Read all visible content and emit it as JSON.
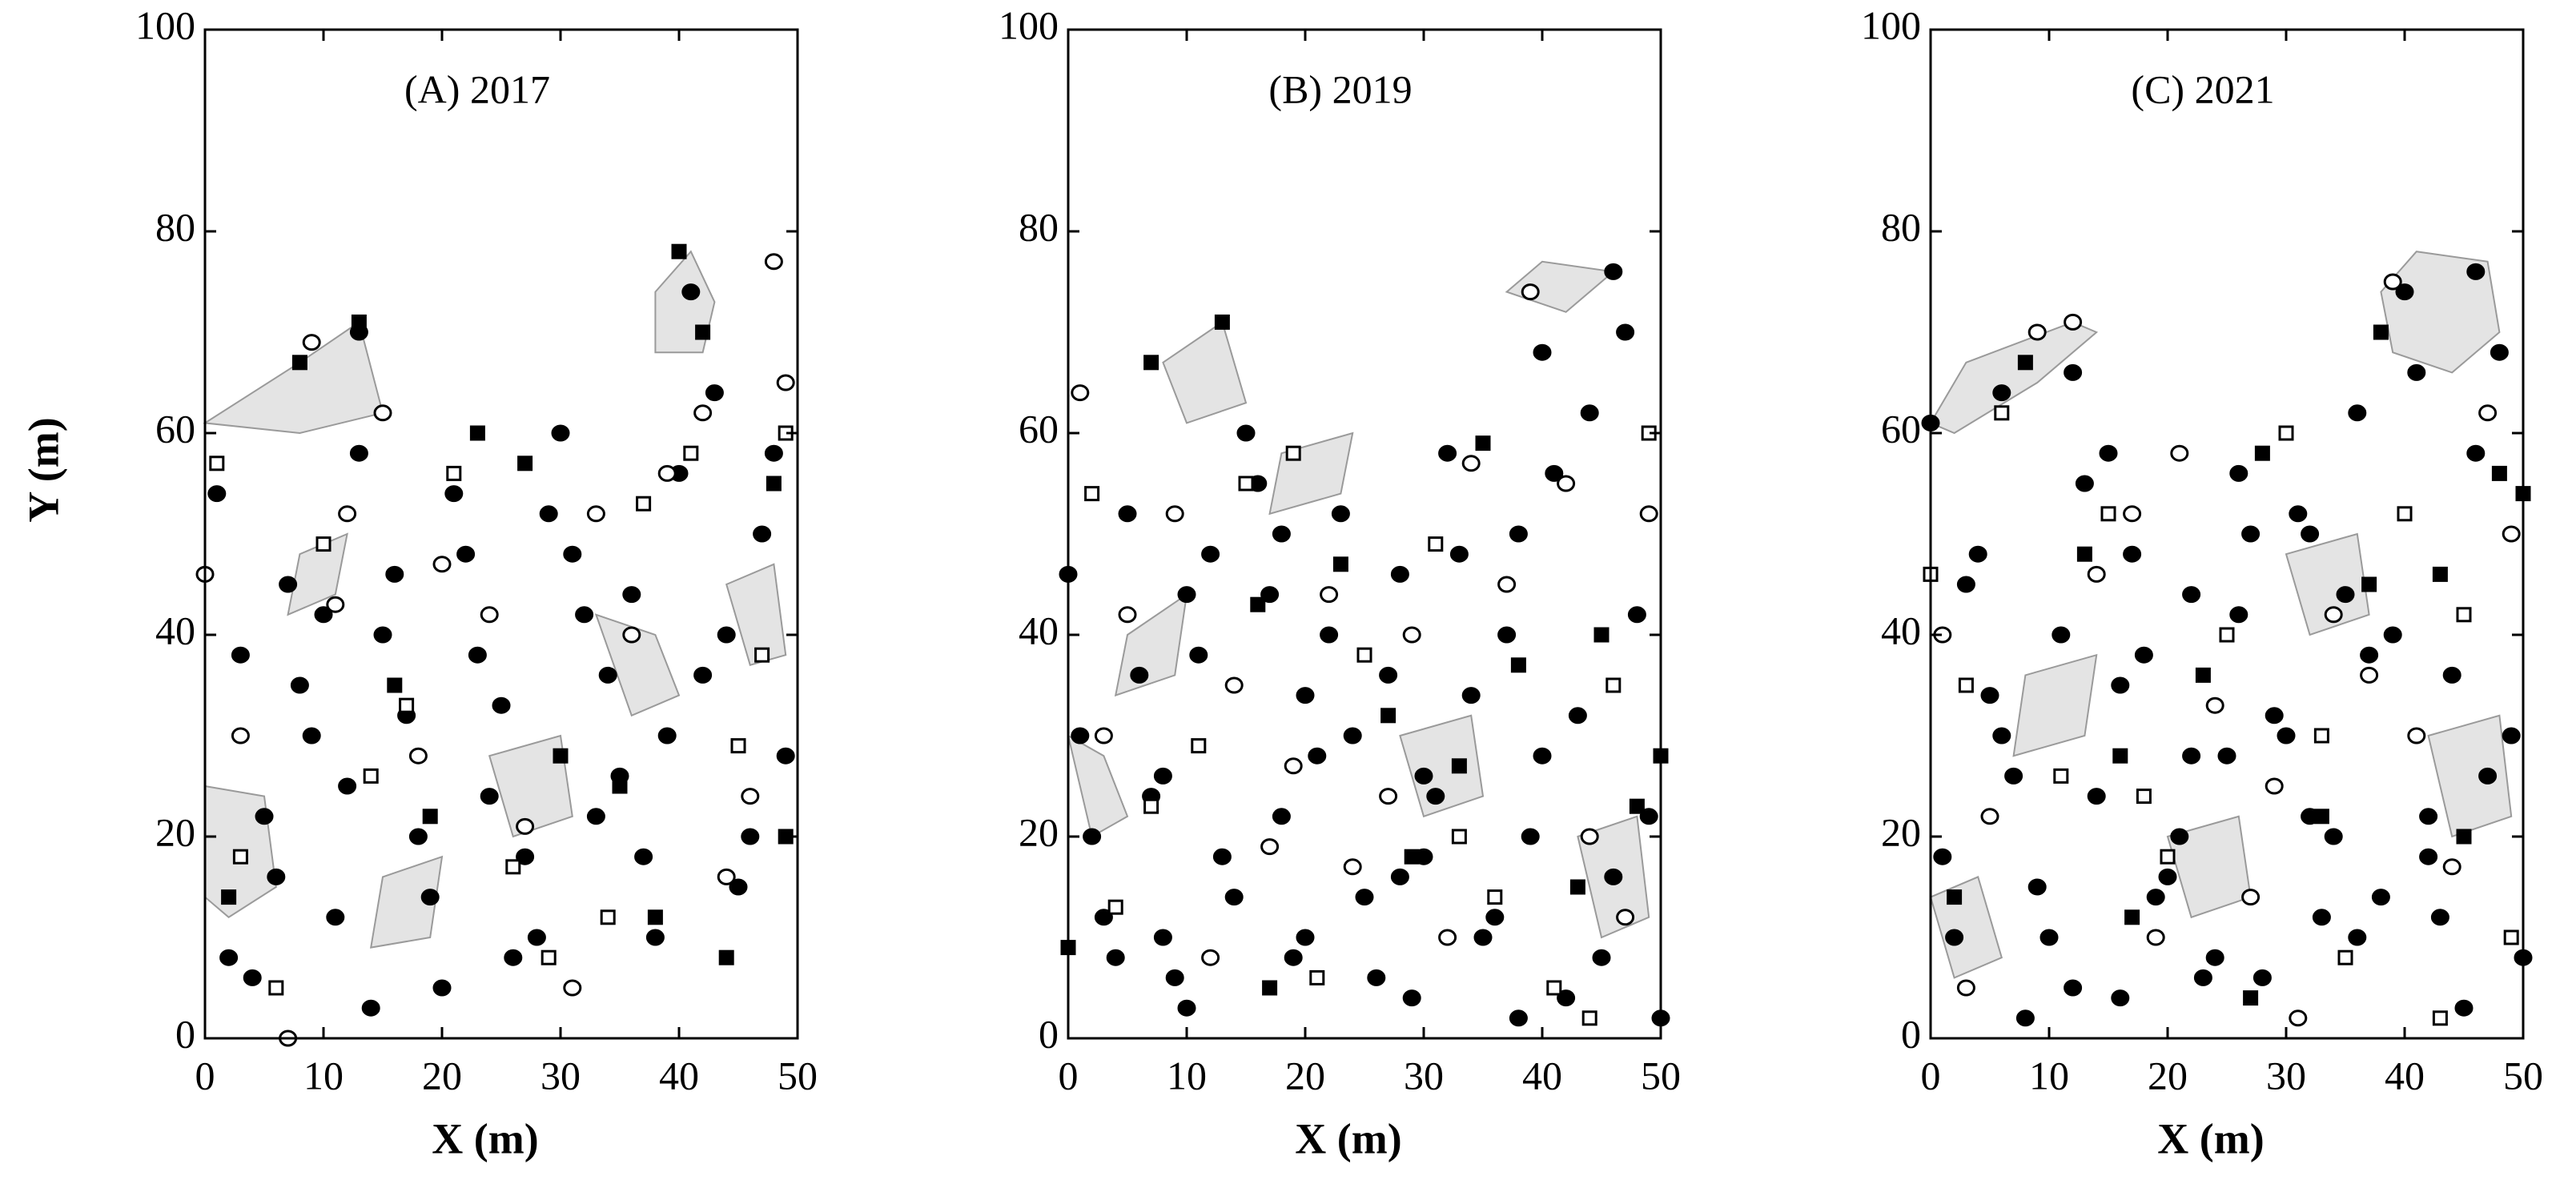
{
  "chart_data": [
    {
      "type": "scatter",
      "title": "(A) 2017",
      "xlabel": "X (m)",
      "ylabel": "Y (m)",
      "xlim": [
        0,
        50
      ],
      "ylim": [
        0,
        100
      ],
      "xticks": [
        0,
        10,
        20,
        30,
        40,
        50
      ],
      "yticks": [
        0,
        20,
        40,
        60,
        80,
        100
      ],
      "polygon_color": "#e4e4e4",
      "polygons": [
        {
          "x": [
            0,
            8,
            13,
            15,
            8
          ],
          "y": [
            61,
            67,
            71,
            62,
            60
          ]
        },
        {
          "x": [
            38,
            41,
            43,
            42,
            38
          ],
          "y": [
            74,
            78,
            73,
            68,
            68
          ]
        },
        {
          "x": [
            0,
            5,
            6,
            2,
            0
          ],
          "y": [
            25,
            24,
            15,
            12,
            14
          ]
        },
        {
          "x": [
            33,
            38,
            40,
            36
          ],
          "y": [
            42,
            40,
            34,
            32
          ]
        },
        {
          "x": [
            24,
            30,
            31,
            26
          ],
          "y": [
            28,
            30,
            22,
            20
          ]
        },
        {
          "x": [
            44,
            48,
            49,
            46
          ],
          "y": [
            45,
            47,
            38,
            37
          ]
        },
        {
          "x": [
            15,
            20,
            19,
            14
          ],
          "y": [
            16,
            18,
            10,
            9
          ]
        },
        {
          "x": [
            8,
            12,
            11,
            7
          ],
          "y": [
            48,
            50,
            44,
            42
          ]
        }
      ],
      "series": [
        {
          "marker": "circle",
          "filled": true,
          "color": "#000000",
          "x": [
            1,
            3,
            5,
            2,
            7,
            9,
            11,
            13,
            15,
            18,
            20,
            22,
            25,
            27,
            30,
            32,
            35,
            38,
            40,
            42,
            45,
            47,
            49,
            4,
            8,
            12,
            16,
            19,
            23,
            26,
            29,
            33,
            36,
            39,
            43,
            46,
            48,
            6,
            10,
            14,
            17,
            21,
            24,
            28,
            31,
            34,
            37,
            41,
            44,
            13
          ],
          "y": [
            54,
            38,
            22,
            8,
            45,
            30,
            12,
            58,
            40,
            20,
            5,
            48,
            33,
            18,
            60,
            42,
            26,
            10,
            56,
            36,
            15,
            50,
            28,
            6,
            35,
            25,
            46,
            14,
            38,
            8,
            52,
            22,
            44,
            30,
            64,
            20,
            58,
            16,
            42,
            3,
            32,
            54,
            24,
            10,
            48,
            36,
            18,
            74,
            40,
            70
          ]
        },
        {
          "marker": "circle",
          "filled": false,
          "color": "#000000",
          "x": [
            0,
            9,
            12,
            3,
            20,
            27,
            36,
            42,
            48,
            7,
            15,
            24,
            31,
            39,
            46,
            11,
            18,
            33,
            44,
            49
          ],
          "y": [
            46,
            69,
            52,
            30,
            47,
            21,
            40,
            62,
            77,
            0,
            62,
            42,
            5,
            56,
            24,
            43,
            28,
            52,
            16,
            65
          ]
        },
        {
          "marker": "square",
          "filled": false,
          "color": "#000000",
          "x": [
            1,
            6,
            14,
            21,
            26,
            34,
            41,
            47,
            3,
            10,
            17,
            29,
            37,
            45,
            49
          ],
          "y": [
            57,
            5,
            26,
            56,
            17,
            12,
            58,
            38,
            18,
            49,
            33,
            8,
            53,
            29,
            60
          ]
        },
        {
          "marker": "square",
          "filled": true,
          "color": "#000000",
          "x": [
            8,
            13,
            19,
            23,
            30,
            35,
            40,
            44,
            48,
            2,
            16,
            27,
            38,
            42,
            49
          ],
          "y": [
            67,
            71,
            22,
            60,
            28,
            25,
            78,
            8,
            55,
            14,
            35,
            57,
            12,
            70,
            20
          ]
        }
      ]
    },
    {
      "type": "scatter",
      "title": "(B) 2019",
      "xlabel": "X (m)",
      "xlim": [
        0,
        50
      ],
      "ylim": [
        0,
        100
      ],
      "xticks": [
        0,
        10,
        20,
        30,
        40,
        50
      ],
      "yticks": [
        0,
        20,
        40,
        60,
        80,
        100
      ],
      "polygon_color": "#e4e4e4",
      "polygons": [
        {
          "x": [
            8,
            13,
            15,
            10
          ],
          "y": [
            67,
            71,
            63,
            61
          ]
        },
        {
          "x": [
            37,
            40,
            46,
            42
          ],
          "y": [
            74,
            77,
            76,
            72
          ]
        },
        {
          "x": [
            0,
            3,
            5,
            2
          ],
          "y": [
            30,
            28,
            22,
            20
          ]
        },
        {
          "x": [
            28,
            34,
            35,
            30
          ],
          "y": [
            30,
            32,
            24,
            22
          ]
        },
        {
          "x": [
            18,
            24,
            23,
            17
          ],
          "y": [
            58,
            60,
            54,
            52
          ]
        },
        {
          "x": [
            43,
            48,
            49,
            45
          ],
          "y": [
            20,
            22,
            12,
            10
          ]
        },
        {
          "x": [
            5,
            10,
            9,
            4
          ],
          "y": [
            40,
            44,
            36,
            34
          ]
        }
      ],
      "series": [
        {
          "marker": "circle",
          "filled": true,
          "color": "#000000",
          "x": [
            0,
            2,
            4,
            6,
            8,
            10,
            12,
            14,
            16,
            18,
            20,
            22,
            24,
            26,
            28,
            30,
            32,
            34,
            36,
            38,
            40,
            42,
            44,
            46,
            48,
            50,
            1,
            3,
            5,
            7,
            9,
            11,
            13,
            15,
            17,
            19,
            21,
            23,
            25,
            27,
            29,
            31,
            33,
            35,
            37,
            39,
            41,
            43,
            45,
            47,
            49,
            10,
            20,
            30,
            40,
            8,
            18,
            28,
            38,
            46
          ],
          "y": [
            46,
            20,
            8,
            36,
            26,
            3,
            48,
            14,
            55,
            22,
            10,
            40,
            30,
            6,
            46,
            18,
            58,
            34,
            12,
            50,
            28,
            4,
            62,
            16,
            42,
            2,
            30,
            12,
            52,
            24,
            6,
            38,
            18,
            60,
            44,
            8,
            28,
            52,
            14,
            36,
            4,
            24,
            48,
            10,
            40,
            20,
            56,
            32,
            8,
            70,
            22,
            44,
            34,
            26,
            68,
            10,
            50,
            16,
            2,
            76
          ]
        },
        {
          "marker": "circle",
          "filled": false,
          "color": "#000000",
          "x": [
            1,
            5,
            9,
            14,
            19,
            24,
            29,
            34,
            39,
            44,
            49,
            3,
            12,
            22,
            32,
            42,
            47,
            17,
            27,
            37
          ],
          "y": [
            64,
            42,
            52,
            35,
            27,
            17,
            40,
            57,
            74,
            20,
            52,
            30,
            8,
            44,
            10,
            55,
            12,
            19,
            24,
            45
          ]
        },
        {
          "marker": "square",
          "filled": false,
          "color": "#000000",
          "x": [
            2,
            7,
            11,
            15,
            21,
            25,
            31,
            36,
            41,
            46,
            49,
            4,
            19,
            33,
            44
          ],
          "y": [
            54,
            23,
            29,
            55,
            6,
            38,
            49,
            14,
            5,
            35,
            60,
            13,
            58,
            20,
            2
          ]
        },
        {
          "marker": "square",
          "filled": true,
          "color": "#000000",
          "x": [
            7,
            13,
            17,
            23,
            27,
            33,
            38,
            43,
            48,
            0,
            16,
            29,
            35,
            45,
            50
          ],
          "y": [
            67,
            71,
            5,
            47,
            32,
            27,
            37,
            15,
            23,
            9,
            43,
            18,
            59,
            40,
            28
          ]
        }
      ]
    },
    {
      "type": "scatter",
      "title": "(C) 2021",
      "xlabel": "X (m)",
      "xlim": [
        0,
        50
      ],
      "ylim": [
        0,
        100
      ],
      "xticks": [
        0,
        10,
        20,
        30,
        40,
        50
      ],
      "yticks": [
        0,
        20,
        40,
        60,
        80,
        100
      ],
      "polygon_color": "#e4e4e4",
      "polygons": [
        {
          "x": [
            0,
            3,
            12,
            14,
            9,
            2
          ],
          "y": [
            61,
            67,
            71,
            70,
            65,
            60
          ]
        },
        {
          "x": [
            38,
            41,
            47,
            48,
            44,
            39
          ],
          "y": [
            74,
            78,
            77,
            70,
            66,
            68
          ]
        },
        {
          "x": [
            0,
            4,
            6,
            2
          ],
          "y": [
            14,
            16,
            8,
            6
          ]
        },
        {
          "x": [
            20,
            26,
            27,
            22
          ],
          "y": [
            20,
            22,
            14,
            12
          ]
        },
        {
          "x": [
            30,
            36,
            37,
            32
          ],
          "y": [
            48,
            50,
            42,
            40
          ]
        },
        {
          "x": [
            42,
            48,
            49,
            44
          ],
          "y": [
            30,
            32,
            22,
            20
          ]
        },
        {
          "x": [
            8,
            14,
            13,
            7
          ],
          "y": [
            36,
            38,
            30,
            28
          ]
        }
      ],
      "series": [
        {
          "marker": "circle",
          "filled": true,
          "color": "#000000",
          "x": [
            0,
            3,
            6,
            9,
            12,
            15,
            18,
            21,
            24,
            27,
            30,
            33,
            36,
            39,
            42,
            45,
            48,
            1,
            4,
            7,
            10,
            13,
            16,
            19,
            22,
            25,
            28,
            31,
            34,
            37,
            40,
            43,
            46,
            49,
            2,
            5,
            8,
            11,
            14,
            17,
            20,
            23,
            26,
            29,
            32,
            35,
            38,
            41,
            44,
            47,
            50,
            12,
            22,
            32,
            42,
            6,
            16,
            26,
            36,
            46
          ],
          "y": [
            61,
            45,
            30,
            15,
            5,
            58,
            38,
            20,
            8,
            50,
            30,
            12,
            62,
            40,
            22,
            3,
            68,
            18,
            48,
            26,
            10,
            55,
            35,
            14,
            44,
            28,
            6,
            52,
            20,
            38,
            74,
            12,
            58,
            30,
            10,
            34,
            2,
            40,
            24,
            48,
            16,
            6,
            56,
            32,
            22,
            44,
            14,
            66,
            36,
            26,
            8,
            66,
            28,
            50,
            18,
            64,
            4,
            42,
            10,
            76
          ]
        },
        {
          "marker": "circle",
          "filled": false,
          "color": "#000000",
          "x": [
            1,
            5,
            9,
            14,
            19,
            24,
            29,
            34,
            39,
            44,
            49,
            3,
            12,
            21,
            31,
            41,
            47,
            17,
            27,
            37
          ],
          "y": [
            40,
            22,
            70,
            46,
            10,
            33,
            25,
            42,
            75,
            17,
            50,
            5,
            71,
            58,
            2,
            30,
            62,
            52,
            14,
            36
          ]
        },
        {
          "marker": "square",
          "filled": false,
          "color": "#000000",
          "x": [
            0,
            6,
            11,
            15,
            20,
            25,
            30,
            35,
            40,
            45,
            49,
            3,
            18,
            33,
            43
          ],
          "y": [
            46,
            62,
            26,
            52,
            18,
            40,
            60,
            8,
            52,
            42,
            10,
            35,
            24,
            30,
            2
          ]
        },
        {
          "marker": "square",
          "filled": true,
          "color": "#000000",
          "x": [
            8,
            13,
            17,
            23,
            28,
            33,
            38,
            43,
            48,
            2,
            16,
            27,
            37,
            45,
            50
          ],
          "y": [
            67,
            48,
            12,
            36,
            58,
            22,
            70,
            46,
            56,
            14,
            28,
            4,
            45,
            20,
            54
          ]
        }
      ]
    }
  ]
}
